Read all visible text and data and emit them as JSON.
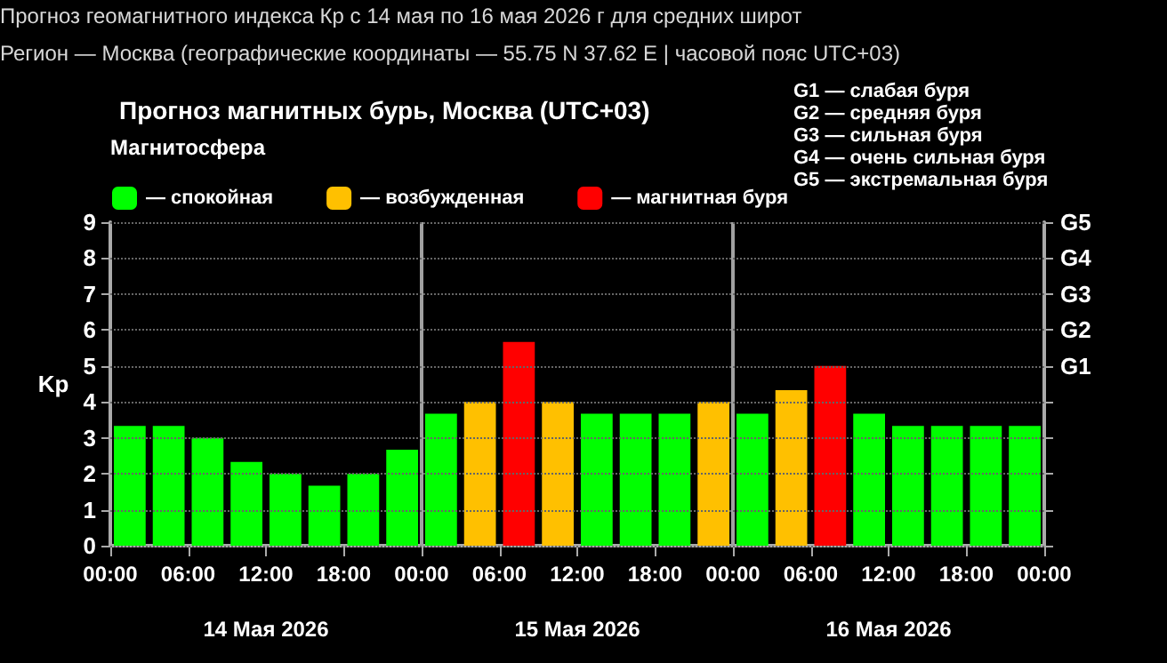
{
  "chart_data": {
    "type": "bar",
    "title": "Прогноз магнитных бурь, Москва (UTC+03)",
    "ylabel": "Kp",
    "legend_title": "Магнитосфера",
    "x": [
      "2026-05-14T01:30",
      "2026-05-14T04:30",
      "2026-05-14T07:30",
      "2026-05-14T10:30",
      "2026-05-14T13:30",
      "2026-05-14T16:30",
      "2026-05-14T19:30",
      "2026-05-14T22:30",
      "2026-05-15T01:30",
      "2026-05-15T04:30",
      "2026-05-15T07:30",
      "2026-05-15T10:30",
      "2026-05-15T13:30",
      "2026-05-15T16:30",
      "2026-05-15T19:30",
      "2026-05-15T22:30",
      "2026-05-16T01:30",
      "2026-05-16T04:30",
      "2026-05-16T07:30",
      "2026-05-16T10:30",
      "2026-05-16T13:30",
      "2026-05-16T16:30",
      "2026-05-16T19:30",
      "2026-05-16T22:30"
    ],
    "series": [
      {
        "name": "— спокойная",
        "color": "#00ff00",
        "values": [
          3.33,
          3.33,
          3,
          2.33,
          2,
          1.67,
          2,
          2.67,
          3.67,
          null,
          null,
          null,
          3.67,
          3.67,
          3.67,
          null,
          3.67,
          null,
          null,
          3.67,
          3.33,
          3.33,
          3.33,
          3.33
        ]
      },
      {
        "name": "— возбужденная",
        "color": "#ffc000",
        "values": [
          null,
          null,
          null,
          null,
          null,
          null,
          null,
          null,
          null,
          4,
          null,
          4,
          null,
          null,
          null,
          4,
          null,
          4.33,
          null,
          null,
          null,
          null,
          null,
          null
        ]
      },
      {
        "name": "— магнитная буря",
        "color": "#ff0000",
        "values": [
          null,
          null,
          null,
          null,
          null,
          null,
          null,
          null,
          null,
          null,
          5.67,
          null,
          null,
          null,
          null,
          null,
          null,
          null,
          5,
          null,
          null,
          null,
          null,
          null
        ]
      }
    ],
    "xlim": [
      "2026-05-14T00:00",
      "2026-05-17T00:00"
    ],
    "xticks": [
      {
        "value": "2026-05-14T00:00",
        "label": "00:00"
      },
      {
        "value": "2026-05-14T06:00",
        "label": "06:00"
      },
      {
        "value": "2026-05-14T12:00",
        "label": "12:00"
      },
      {
        "value": "2026-05-14T18:00",
        "label": "18:00"
      },
      {
        "value": "2026-05-15T00:00",
        "label": "00:00"
      },
      {
        "value": "2026-05-15T06:00",
        "label": "06:00"
      },
      {
        "value": "2026-05-15T12:00",
        "label": "12:00"
      },
      {
        "value": "2026-05-15T18:00",
        "label": "18:00"
      },
      {
        "value": "2026-05-16T00:00",
        "label": "00:00"
      },
      {
        "value": "2026-05-16T06:00",
        "label": "06:00"
      },
      {
        "value": "2026-05-16T12:00",
        "label": "12:00"
      },
      {
        "value": "2026-05-16T18:00",
        "label": "18:00"
      },
      {
        "value": "2026-05-17T00:00",
        "label": "00:00"
      }
    ],
    "ylim": [
      0,
      9
    ],
    "yticks": [
      0,
      1,
      2,
      3,
      4,
      5,
      6,
      7,
      8,
      9
    ],
    "ref_lines": [
      {
        "axis": "x",
        "value": "2026-05-15T00:00",
        "color": "#a0a0a0"
      },
      {
        "axis": "x",
        "value": "2026-05-16T00:00",
        "color": "#a0a0a0"
      }
    ],
    "grid": "y",
    "legend": "top left",
    "annotations": [
      "Прогноз геомагнитного индекса Кр с 14 мая по 16 мая 2026 г для средних широт",
      "Регион — Москва (географические координаты — 55.75 N 37.62 E | часовой пояс UTC+03)",
      "14 Мая 2026",
      "15 Мая 2026",
      "16 Мая 2026",
      "G1 — слабая буря",
      "G2 — средняя буря",
      "G3 — сильная буря",
      "G4 — очень сильная буря",
      "G5 — экстремальная буря",
      "G1",
      "G2",
      "G3",
      "G4",
      "G5"
    ]
  }
}
